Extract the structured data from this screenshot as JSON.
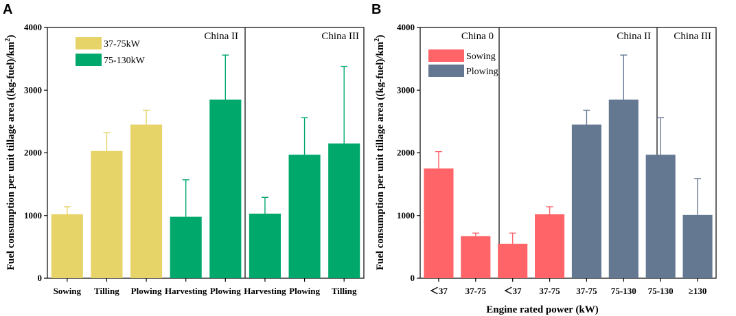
{
  "chart_data": [
    {
      "panel": "A",
      "type": "bar",
      "ylabel": "Fuel consumption per unit tillage area ((kg-fuel)/km2)",
      "ylabel_main": "Fuel consumption per unit tillage area ((kg-fuel)/km",
      "ylabel_sup": "2",
      "ylabel_end": ")",
      "ylim": [
        0,
        4000
      ],
      "yticks": [
        "0",
        "1000",
        "2000",
        "3000",
        "4000"
      ],
      "regions": [
        "China II",
        "China III"
      ],
      "legend": [
        {
          "name": "37-75kW",
          "color": "#e6d468"
        },
        {
          "name": "75-130kW",
          "color": "#00a86b"
        }
      ],
      "categories": [
        "Sowing",
        "Tilling",
        "Plowing",
        "Harvesting",
        "Plowing",
        "Harvesting",
        "Plowing",
        "Tilling"
      ],
      "values": [
        1020,
        2030,
        2450,
        980,
        2850,
        1030,
        1970,
        2150
      ],
      "errors": [
        120,
        290,
        230,
        590,
        710,
        260,
        590,
        1230
      ],
      "series_index": [
        0,
        0,
        0,
        1,
        1,
        1,
        1,
        1
      ],
      "region_index": [
        0,
        0,
        0,
        0,
        0,
        1,
        1,
        1
      ]
    },
    {
      "panel": "B",
      "type": "bar",
      "xlabel": "Engine rated power (kW)",
      "ylabel": "Fuel consumption per unit tillage area ((kg-fuel)/km2)",
      "ylabel_main": "Fuel consumption per unit tillage area ((kg-fuel)/km",
      "ylabel_sup": "2",
      "ylabel_end": ")",
      "ylim": [
        0,
        4000
      ],
      "yticks": [
        "0",
        "1000",
        "2000",
        "3000",
        "4000"
      ],
      "regions": [
        "China 0",
        "China II",
        "China III"
      ],
      "legend": [
        {
          "name": "Sowing",
          "color": "#ff6468"
        },
        {
          "name": "Plowing",
          "color": "#647891"
        }
      ],
      "categories": [
        "＜37",
        "37-75",
        "＜37",
        "37-75",
        "37-75",
        "75-130",
        "75-130",
        "≥130"
      ],
      "values": [
        1750,
        670,
        550,
        1020,
        2450,
        2850,
        1970,
        1010
      ],
      "errors": [
        270,
        50,
        170,
        120,
        230,
        710,
        590,
        580
      ],
      "series_index": [
        0,
        0,
        0,
        0,
        1,
        1,
        1,
        1
      ],
      "region_index": [
        0,
        0,
        1,
        1,
        1,
        1,
        2,
        2
      ]
    }
  ]
}
